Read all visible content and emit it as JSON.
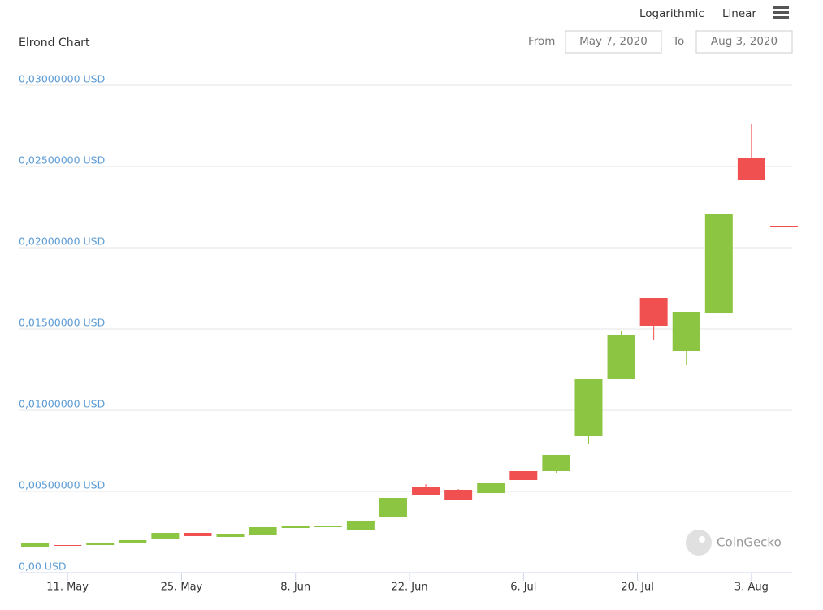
{
  "controls": {
    "scale_log": "Logarithmic",
    "scale_linear": "Linear",
    "from_label": "From",
    "from_value": "May 7, 2020",
    "to_label": "To",
    "to_value": "Aug 3, 2020",
    "watermark": "CoinGecko"
  },
  "chart_data": {
    "type": "candlestick",
    "title": "Elrond Chart",
    "x": [
      "2020-05-07",
      "2020-05-11",
      "2020-05-15",
      "2020-05-19",
      "2020-05-23",
      "2020-05-27",
      "2020-05-31",
      "2020-06-04",
      "2020-06-08",
      "2020-06-12",
      "2020-06-16",
      "2020-06-20",
      "2020-06-24",
      "2020-06-28",
      "2020-07-02",
      "2020-07-06",
      "2020-07-10",
      "2020-07-14",
      "2020-07-18",
      "2020-07-22",
      "2020-07-26",
      "2020-07-30",
      "2020-08-03",
      "2020-08-07"
    ],
    "open": [
      0.0016,
      0.0017,
      0.0017,
      0.00185,
      0.0021,
      0.00245,
      0.0022,
      0.0023,
      0.00275,
      0.0028,
      0.00265,
      0.0034,
      0.00525,
      0.0051,
      0.0049,
      0.00625,
      0.00625,
      0.0084,
      0.01195,
      0.0169,
      0.01365,
      0.016,
      0.0255,
      0.02135
    ],
    "high": [
      0.00185,
      0.0017,
      0.00185,
      0.002,
      0.00245,
      0.00245,
      0.00235,
      0.0028,
      0.00285,
      0.00285,
      0.00315,
      0.0046,
      0.00545,
      0.00515,
      0.0055,
      0.00625,
      0.00725,
      0.01195,
      0.01485,
      0.0169,
      0.01605,
      0.0221,
      0.0276,
      0.02135
    ],
    "low": [
      0.0016,
      0.00168,
      0.0017,
      0.00185,
      0.0021,
      0.00225,
      0.0022,
      0.0023,
      0.00275,
      0.0028,
      0.00265,
      0.0034,
      0.00475,
      0.0045,
      0.0049,
      0.0057,
      0.00615,
      0.0079,
      0.01195,
      0.01435,
      0.0128,
      0.016,
      0.02415,
      0.0213
    ],
    "close": [
      0.00185,
      0.00168,
      0.00185,
      0.002,
      0.00245,
      0.00225,
      0.00235,
      0.0028,
      0.00285,
      0.00285,
      0.00315,
      0.0046,
      0.00475,
      0.0045,
      0.0055,
      0.0057,
      0.00725,
      0.01195,
      0.01465,
      0.0152,
      0.01605,
      0.0221,
      0.02415,
      0.0213
    ],
    "up_color": "#8cc542",
    "down_color": "#f05050",
    "xlim": [
      "2020-05-05",
      "2020-08-08"
    ],
    "xticks": [
      {
        "value": "2020-05-11",
        "label": "11. May"
      },
      {
        "value": "2020-05-25",
        "label": "25. May"
      },
      {
        "value": "2020-06-08",
        "label": "8. Jun"
      },
      {
        "value": "2020-06-22",
        "label": "22. Jun"
      },
      {
        "value": "2020-07-06",
        "label": "6. Jul"
      },
      {
        "value": "2020-07-20",
        "label": "20. Jul"
      },
      {
        "value": "2020-08-03",
        "label": "3. Aug"
      }
    ],
    "ylim": [
      0,
      0.03
    ],
    "yticks": [
      {
        "value": 0,
        "label": "0,00 USD"
      },
      {
        "value": 0.005,
        "label": "0,00500000 USD"
      },
      {
        "value": 0.01,
        "label": "0,01000000 USD"
      },
      {
        "value": 0.015,
        "label": "0,01500000 USD"
      },
      {
        "value": 0.02,
        "label": "0,02000000 USD"
      },
      {
        "value": 0.025,
        "label": "0,02500000 USD"
      },
      {
        "value": 0.03,
        "label": "0,03000000 USD"
      }
    ],
    "grid": true
  }
}
